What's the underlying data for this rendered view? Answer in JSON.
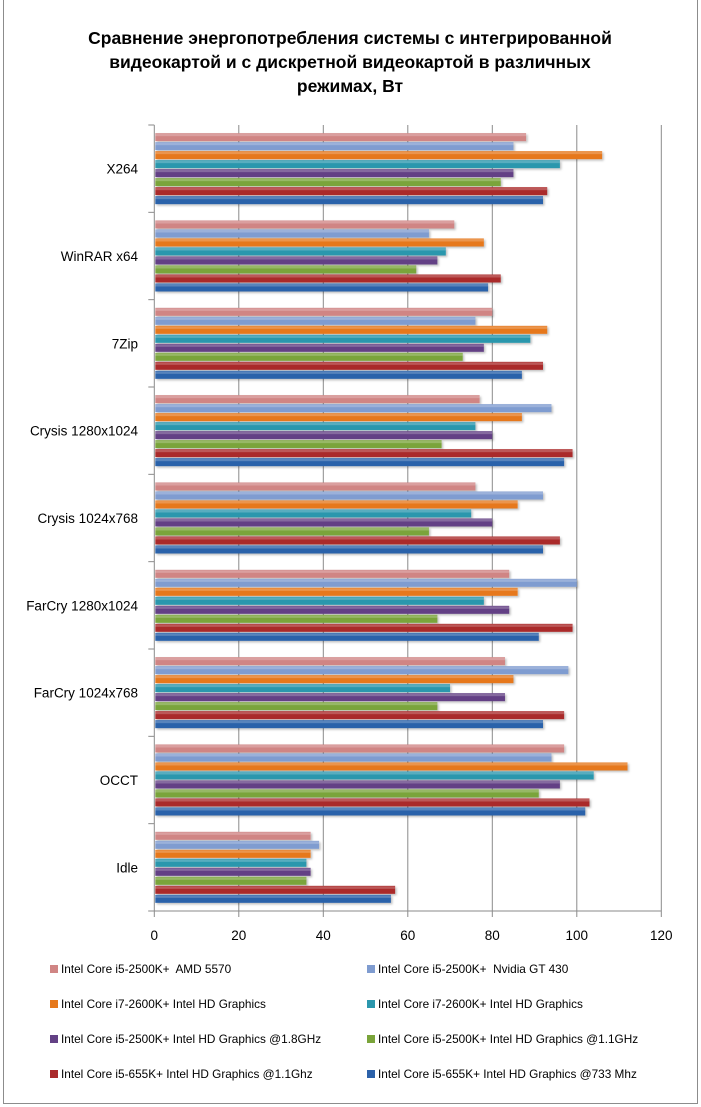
{
  "chart_data": {
    "type": "bar",
    "orientation": "horizontal",
    "title": "Сравнение энергопотребления системы с интегрированной видеокартой и с дискретной видеокартой в различных режимах, Вт",
    "title_lines": [
      "Сравнение энергопотребления системы с интегрированной",
      "видеокартой и с дискретной видеокартой в различных",
      "режимах, Вт"
    ],
    "xlabel": "",
    "ylabel": "",
    "xlim": [
      0,
      120
    ],
    "x_ticks": [
      "0",
      "20",
      "40",
      "60",
      "80",
      "100",
      "120"
    ],
    "grid": "vertical major gridlines",
    "legend_position": "bottom",
    "categories": [
      "X264",
      "WinRAR x64",
      "7Zip",
      "Crysis 1280x1024",
      "Crysis 1024x768",
      "FarCry 1280x1024",
      "FarCry 1024x768",
      "OCCT",
      "Idle"
    ],
    "series": [
      {
        "name": "Intel Core i5-2500K+  AMD 5570",
        "color": "#d08584",
        "values": [
          88,
          71,
          80,
          77,
          76,
          84,
          83,
          97,
          37
        ]
      },
      {
        "name": "Intel Core i5-2500K+  Nvidia GT 430",
        "color": "#7f9cd0",
        "values": [
          85,
          65,
          76,
          94,
          92,
          100,
          98,
          94,
          39
        ]
      },
      {
        "name": "Intel Core i7-2600K+ Intel HD Graphics",
        "color": "#e6781c",
        "values": [
          106,
          78,
          93,
          87,
          86,
          86,
          85,
          112,
          37
        ]
      },
      {
        "name": "Intel Core i7-2600K+ Intel HD Graphics",
        "color": "#2b97ad",
        "values": [
          96,
          69,
          89,
          76,
          75,
          78,
          70,
          104,
          36
        ]
      },
      {
        "name": "Intel Core i5-2500K+ Intel HD Graphics @1.8GHz",
        "color": "#634185",
        "values": [
          85,
          67,
          78,
          80,
          80,
          84,
          83,
          96,
          37
        ]
      },
      {
        "name": "Intel Core i5-2500K+ Intel HD Graphics @1.1GHz",
        "color": "#7aa43a",
        "values": [
          82,
          62,
          73,
          68,
          65,
          67,
          67,
          91,
          36
        ]
      },
      {
        "name": "Intel Core i5-655K+ Intel HD Graphics @1.1Ghz",
        "color": "#aa2a2b",
        "values": [
          93,
          82,
          92,
          99,
          96,
          99,
          97,
          103,
          57
        ]
      },
      {
        "name": "Intel Core i5-655K+ Intel HD Graphics @733 Mhz",
        "color": "#2c62aa",
        "values": [
          92,
          79,
          87,
          97,
          92,
          91,
          92,
          102,
          56
        ]
      }
    ]
  }
}
